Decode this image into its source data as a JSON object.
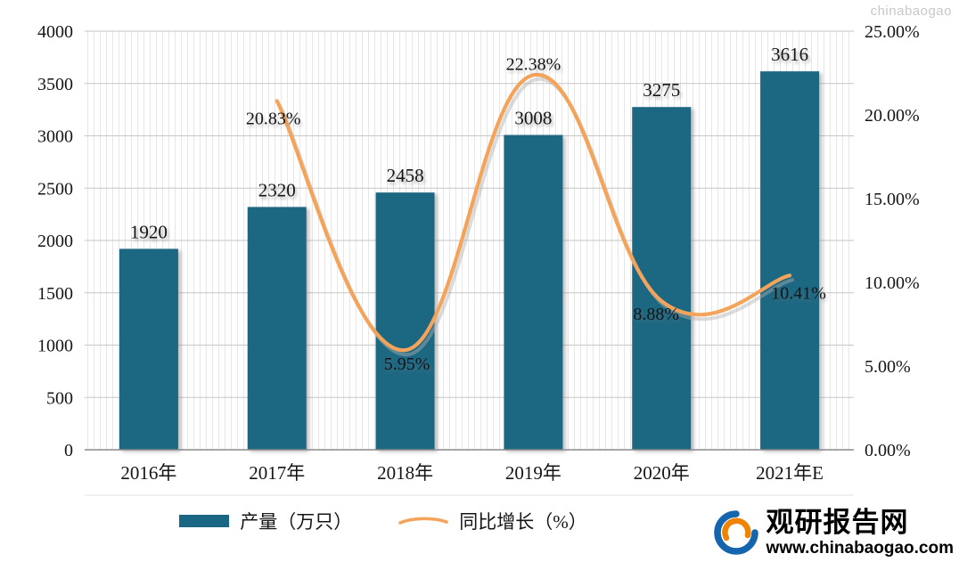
{
  "chart_data": {
    "type": "combo-bar-line",
    "categories": [
      "2016年",
      "2017年",
      "2018年",
      "2019年",
      "2020年",
      "2021年E"
    ],
    "series": [
      {
        "name": "产量（万只）",
        "type": "bar",
        "color": "#1a6783",
        "values": [
          1920,
          2320,
          2458,
          3008,
          3275,
          3616
        ]
      },
      {
        "name": "同比增长（%）",
        "type": "line",
        "color": "#f4a45a",
        "values": [
          null,
          20.83,
          5.95,
          22.38,
          8.88,
          10.41
        ],
        "point_labels": [
          "",
          "20.83%",
          "5.95%",
          "22.38%",
          "8.88%",
          "10.41%"
        ]
      }
    ],
    "left_axis": {
      "min": 0,
      "max": 4000,
      "step": 500,
      "ticks": [
        "0",
        "500",
        "1000",
        "1500",
        "2000",
        "2500",
        "3000",
        "3500",
        "4000"
      ]
    },
    "right_axis": {
      "min": 0,
      "max": 25,
      "step": 5,
      "ticks": [
        "0.00%",
        "5.00%",
        "10.00%",
        "15.00%",
        "20.00%",
        "25.00%"
      ]
    },
    "grid": true,
    "legend_position": "bottom"
  },
  "legend": {
    "items": [
      {
        "label": "产量（万只）"
      },
      {
        "label": "同比增长（%）"
      }
    ]
  },
  "branding": {
    "site_name": "观研报告网",
    "site_url": "www.chinabaogao.com",
    "watermark": "chinabaogao"
  }
}
